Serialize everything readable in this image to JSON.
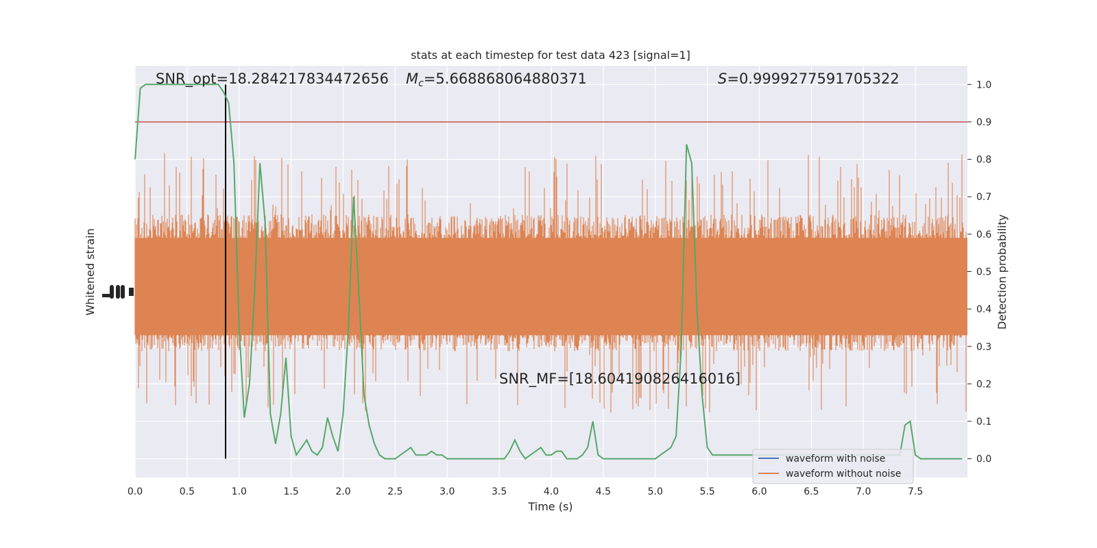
{
  "chart_data": {
    "type": "line",
    "title": "stats at each timestep for test data 423 [signal=1]",
    "xlabel": "Time (s)",
    "ylabel_left": "Whitened strain",
    "ylabel_right": "Detection probability",
    "xlim": [
      0.0,
      8.0
    ],
    "ylim_right": [
      -0.05,
      1.05
    ],
    "xticks": [
      "0.0",
      "0.5",
      "1.0",
      "1.5",
      "2.0",
      "2.5",
      "3.0",
      "3.5",
      "4.0",
      "4.5",
      "5.0",
      "5.5",
      "6.0",
      "6.5",
      "7.0",
      "7.5"
    ],
    "yticks_right": [
      "0.0",
      "0.1",
      "0.2",
      "0.3",
      "0.4",
      "0.5",
      "0.6",
      "0.7",
      "0.8",
      "0.9",
      "1.0"
    ],
    "grid": true,
    "legend_position": "lower-right",
    "threshold": {
      "y": 0.9,
      "color": "#c44e52"
    },
    "vline": {
      "x": 0.87,
      "color": "#000000"
    },
    "annotations": {
      "snr_opt": "SNR_opt=18.284217834472656",
      "mc_symbol": "M",
      "mc_sub": "c",
      "mc_value": "=5.668868064880371",
      "s_symbol": "S",
      "s_value": "=0.9999277591705322",
      "snr_mf": "SNR_MF=[18.604190826416016]"
    },
    "series": [
      {
        "name": "waveform with noise",
        "color": "#4c72b0"
      },
      {
        "name": "waveform without noise",
        "color": "#dd8452"
      },
      {
        "color": "#55a868",
        "x": [
          0.0,
          0.05,
          0.1,
          0.15,
          0.2,
          0.25,
          0.3,
          0.35,
          0.4,
          0.45,
          0.5,
          0.55,
          0.6,
          0.65,
          0.7,
          0.75,
          0.8,
          0.85,
          0.9,
          0.95,
          1.0,
          1.05,
          1.1,
          1.15,
          1.2,
          1.25,
          1.3,
          1.35,
          1.4,
          1.45,
          1.5,
          1.55,
          1.6,
          1.65,
          1.7,
          1.75,
          1.8,
          1.85,
          1.9,
          1.95,
          2.0,
          2.05,
          2.1,
          2.15,
          2.2,
          2.25,
          2.3,
          2.35,
          2.4,
          2.45,
          2.5,
          2.55,
          2.6,
          2.65,
          2.7,
          2.75,
          2.8,
          2.85,
          2.9,
          2.95,
          3.0,
          3.05,
          3.1,
          3.15,
          3.2,
          3.25,
          3.3,
          3.35,
          3.4,
          3.45,
          3.5,
          3.55,
          3.6,
          3.65,
          3.7,
          3.75,
          3.8,
          3.85,
          3.9,
          3.95,
          4.0,
          4.05,
          4.1,
          4.15,
          4.2,
          4.25,
          4.3,
          4.35,
          4.4,
          4.45,
          4.5,
          4.55,
          4.6,
          4.65,
          4.7,
          4.75,
          4.8,
          4.85,
          4.9,
          4.95,
          5.0,
          5.05,
          5.1,
          5.15,
          5.2,
          5.25,
          5.3,
          5.35,
          5.4,
          5.45,
          5.5,
          5.55,
          5.6,
          5.65,
          5.7,
          5.75,
          5.8,
          5.85,
          5.9,
          5.95,
          6.0,
          6.05,
          6.1,
          6.15,
          6.2,
          6.25,
          6.3,
          6.35,
          6.4,
          6.45,
          6.5,
          6.55,
          6.6,
          6.65,
          6.7,
          6.75,
          6.8,
          6.85,
          6.9,
          6.95,
          7.0,
          7.05,
          7.1,
          7.15,
          7.2,
          7.25,
          7.3,
          7.35,
          7.4,
          7.45,
          7.5,
          7.55,
          7.6,
          7.65,
          7.7,
          7.75,
          7.8,
          7.85,
          7.9,
          7.95
        ],
        "y": [
          0.8,
          0.99,
          1.0,
          1.0,
          1.0,
          1.0,
          1.0,
          1.0,
          1.0,
          1.0,
          1.0,
          1.0,
          1.0,
          1.0,
          1.0,
          1.0,
          1.0,
          0.98,
          0.95,
          0.79,
          0.35,
          0.11,
          0.2,
          0.45,
          0.79,
          0.63,
          0.12,
          0.04,
          0.12,
          0.27,
          0.06,
          0.01,
          0.03,
          0.05,
          0.02,
          0.01,
          0.03,
          0.11,
          0.06,
          0.02,
          0.12,
          0.35,
          0.7,
          0.45,
          0.17,
          0.09,
          0.04,
          0.01,
          0.0,
          0.0,
          0.0,
          0.01,
          0.02,
          0.03,
          0.01,
          0.01,
          0.01,
          0.02,
          0.01,
          0.01,
          0.0,
          0.0,
          0.0,
          0.0,
          0.0,
          0.0,
          0.0,
          0.0,
          0.0,
          0.0,
          0.0,
          0.0,
          0.02,
          0.05,
          0.02,
          0.0,
          0.01,
          0.02,
          0.03,
          0.01,
          0.01,
          0.02,
          0.02,
          0.0,
          0.0,
          0.0,
          0.01,
          0.03,
          0.1,
          0.01,
          0.0,
          0.0,
          0.0,
          0.0,
          0.0,
          0.0,
          0.0,
          0.0,
          0.0,
          0.0,
          0.0,
          0.01,
          0.02,
          0.03,
          0.06,
          0.3,
          0.84,
          0.79,
          0.4,
          0.17,
          0.03,
          0.01,
          0.01,
          0.01,
          0.01,
          0.01,
          0.01,
          0.01,
          0.01,
          0.01,
          0.01,
          0.01,
          0.01,
          0.01,
          0.01,
          0.01,
          0.01,
          0.01,
          0.01,
          0.01,
          0.01,
          0.01,
          0.01,
          0.01,
          0.01,
          0.01,
          0.01,
          0.01,
          0.01,
          0.01,
          0.01,
          0.01,
          0.01,
          0.01,
          0.01,
          0.01,
          0.01,
          0.01,
          0.09,
          0.1,
          0.01,
          0.0,
          0.0,
          0.0,
          0.0,
          0.0,
          0.0,
          0.0,
          0.0,
          0.0
        ]
      }
    ]
  }
}
